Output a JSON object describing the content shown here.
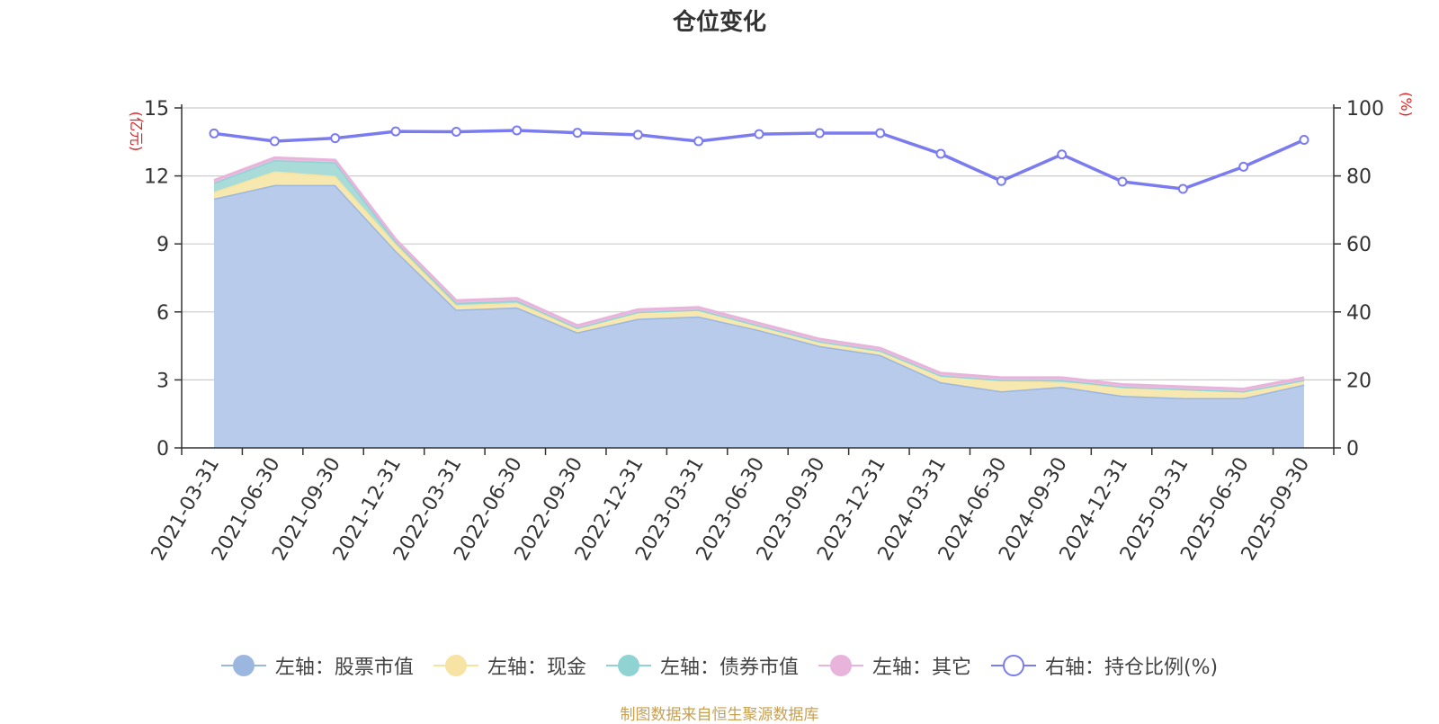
{
  "title": "仓位变化",
  "source": "制图数据来自恒生聚源数据库",
  "chart_data": {
    "type": "area",
    "stacked": true,
    "categories": [
      "2021-03-31",
      "2021-06-30",
      "2021-09-30",
      "2021-12-31",
      "2022-03-31",
      "2022-06-30",
      "2022-09-30",
      "2022-12-31",
      "2023-03-31",
      "2023-06-30",
      "2023-09-30",
      "2023-12-31",
      "2024-03-31",
      "2024-06-30",
      "2024-09-30",
      "2024-12-31",
      "2025-03-31",
      "2025-06-30",
      "2025-09-30"
    ],
    "left_axis": {
      "unit": "(亿元)",
      "min": 0,
      "max": 15,
      "ticks": [
        0,
        3,
        6,
        9,
        12,
        15
      ]
    },
    "right_axis": {
      "unit": "(%)",
      "min": 0,
      "max": 100,
      "ticks": [
        0,
        20,
        40,
        60,
        80,
        100
      ]
    },
    "series": [
      {
        "name": "左轴：股票市值",
        "axis": "left",
        "type": "area",
        "color": "#9bb7e0",
        "fill": "#b8cbea",
        "values": [
          11.0,
          11.6,
          11.6,
          8.7,
          6.1,
          6.2,
          5.1,
          5.7,
          5.8,
          5.2,
          4.5,
          4.1,
          2.9,
          2.5,
          2.7,
          2.3,
          2.2,
          2.2,
          2.8
        ]
      },
      {
        "name": "左轴：现金",
        "axis": "left",
        "type": "area",
        "color": "#f5e3a0",
        "fill": "#f7e8b0",
        "values": [
          0.3,
          0.6,
          0.4,
          0.3,
          0.2,
          0.2,
          0.2,
          0.3,
          0.3,
          0.2,
          0.2,
          0.2,
          0.3,
          0.5,
          0.2,
          0.4,
          0.4,
          0.3,
          0.2
        ]
      },
      {
        "name": "左轴：债券市值",
        "axis": "left",
        "type": "area",
        "color": "#8fd3d3",
        "fill": "#a9dcd9",
        "values": [
          0.4,
          0.5,
          0.6,
          0.1,
          0.1,
          0.1,
          0.0,
          0.0,
          0.0,
          0.0,
          0.0,
          0.0,
          0.0,
          0.0,
          0.1,
          0.0,
          0.0,
          0.0,
          0.0
        ]
      },
      {
        "name": "左轴：其它",
        "axis": "left",
        "type": "area",
        "color": "#e8b4dc",
        "fill": "#ecc0e2",
        "values": [
          0.1,
          0.1,
          0.1,
          0.1,
          0.1,
          0.1,
          0.1,
          0.1,
          0.1,
          0.1,
          0.1,
          0.1,
          0.1,
          0.1,
          0.1,
          0.1,
          0.1,
          0.1,
          0.1
        ]
      },
      {
        "name": "右轴：持仓比例(%)",
        "axis": "right",
        "type": "line",
        "color": "#7b7bf0",
        "values": [
          92.5,
          90.2,
          91.1,
          93.1,
          93.0,
          93.4,
          92.7,
          92.1,
          90.2,
          92.3,
          92.6,
          92.6,
          86.5,
          78.5,
          86.3,
          78.3,
          76.2,
          82.7,
          90.6
        ]
      }
    ],
    "grid": true,
    "legend_position": "bottom"
  }
}
